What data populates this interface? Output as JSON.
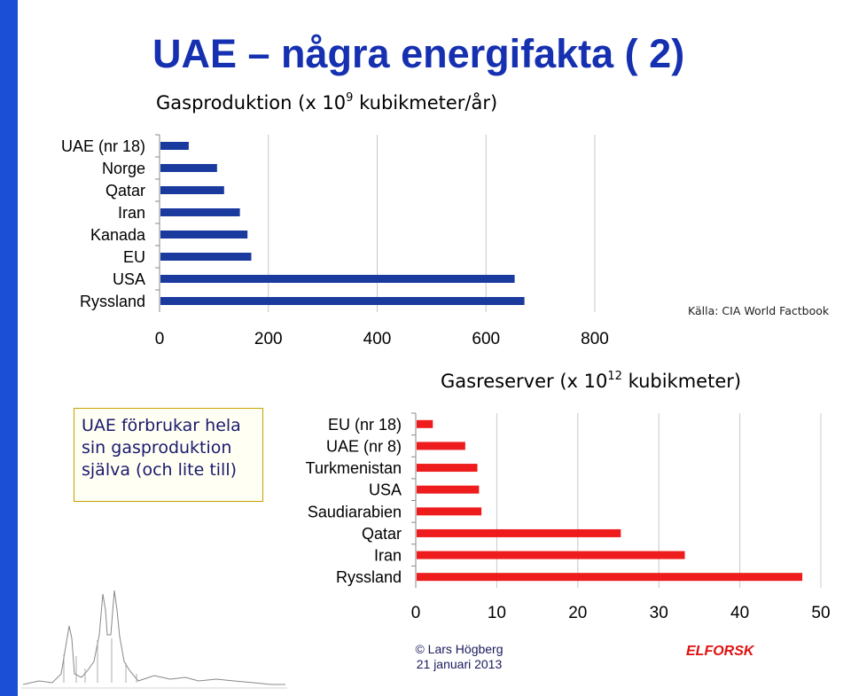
{
  "title": "UAE – några energifakta ( 2)",
  "source": "Källa: CIA World Factbook",
  "note": "UAE förbrukar hela sin gasproduktion själva (och lite till)",
  "footer": {
    "copyright": "© Lars Högberg",
    "date": "21 januari 2013",
    "brand": "ELFORSK"
  },
  "colors": {
    "title": "#1530b0",
    "production_bars": "#1a3a9e",
    "reserves_bars": "#ee1c1c",
    "brand": "#e01010"
  },
  "chart_data": [
    {
      "type": "bar",
      "orientation": "horizontal",
      "title_main": "Gasproduktion (x 10",
      "title_exp": "9",
      "title_rest": " kubikmeter/år)",
      "categories": [
        "UAE (nr 18)",
        "Norge",
        "Qatar",
        "Iran",
        "Kanada",
        "EU",
        "USA",
        "Ryssland"
      ],
      "values": [
        52,
        104,
        117,
        146,
        160,
        167,
        651,
        669
      ],
      "xlim": [
        0,
        800
      ],
      "xticks": [
        "0",
        "200",
        "400",
        "600",
        "800"
      ],
      "grid": true
    },
    {
      "type": "bar",
      "orientation": "horizontal",
      "title_main": "Gasreserver (x 10",
      "title_exp": "12",
      "title_rest": " kubikmeter)",
      "categories": [
        "EU (nr 18)",
        "UAE (nr 8)",
        "Turkmenistan",
        "USA",
        "Saudiarabien",
        "Qatar",
        "Iran",
        "Ryssland"
      ],
      "values": [
        2,
        6,
        7.5,
        7.7,
        8,
        25.2,
        33.1,
        47.6
      ],
      "xlim": [
        0,
        50
      ],
      "xticks": [
        "0",
        "10",
        "20",
        "30",
        "40",
        "50"
      ],
      "grid": true
    }
  ]
}
